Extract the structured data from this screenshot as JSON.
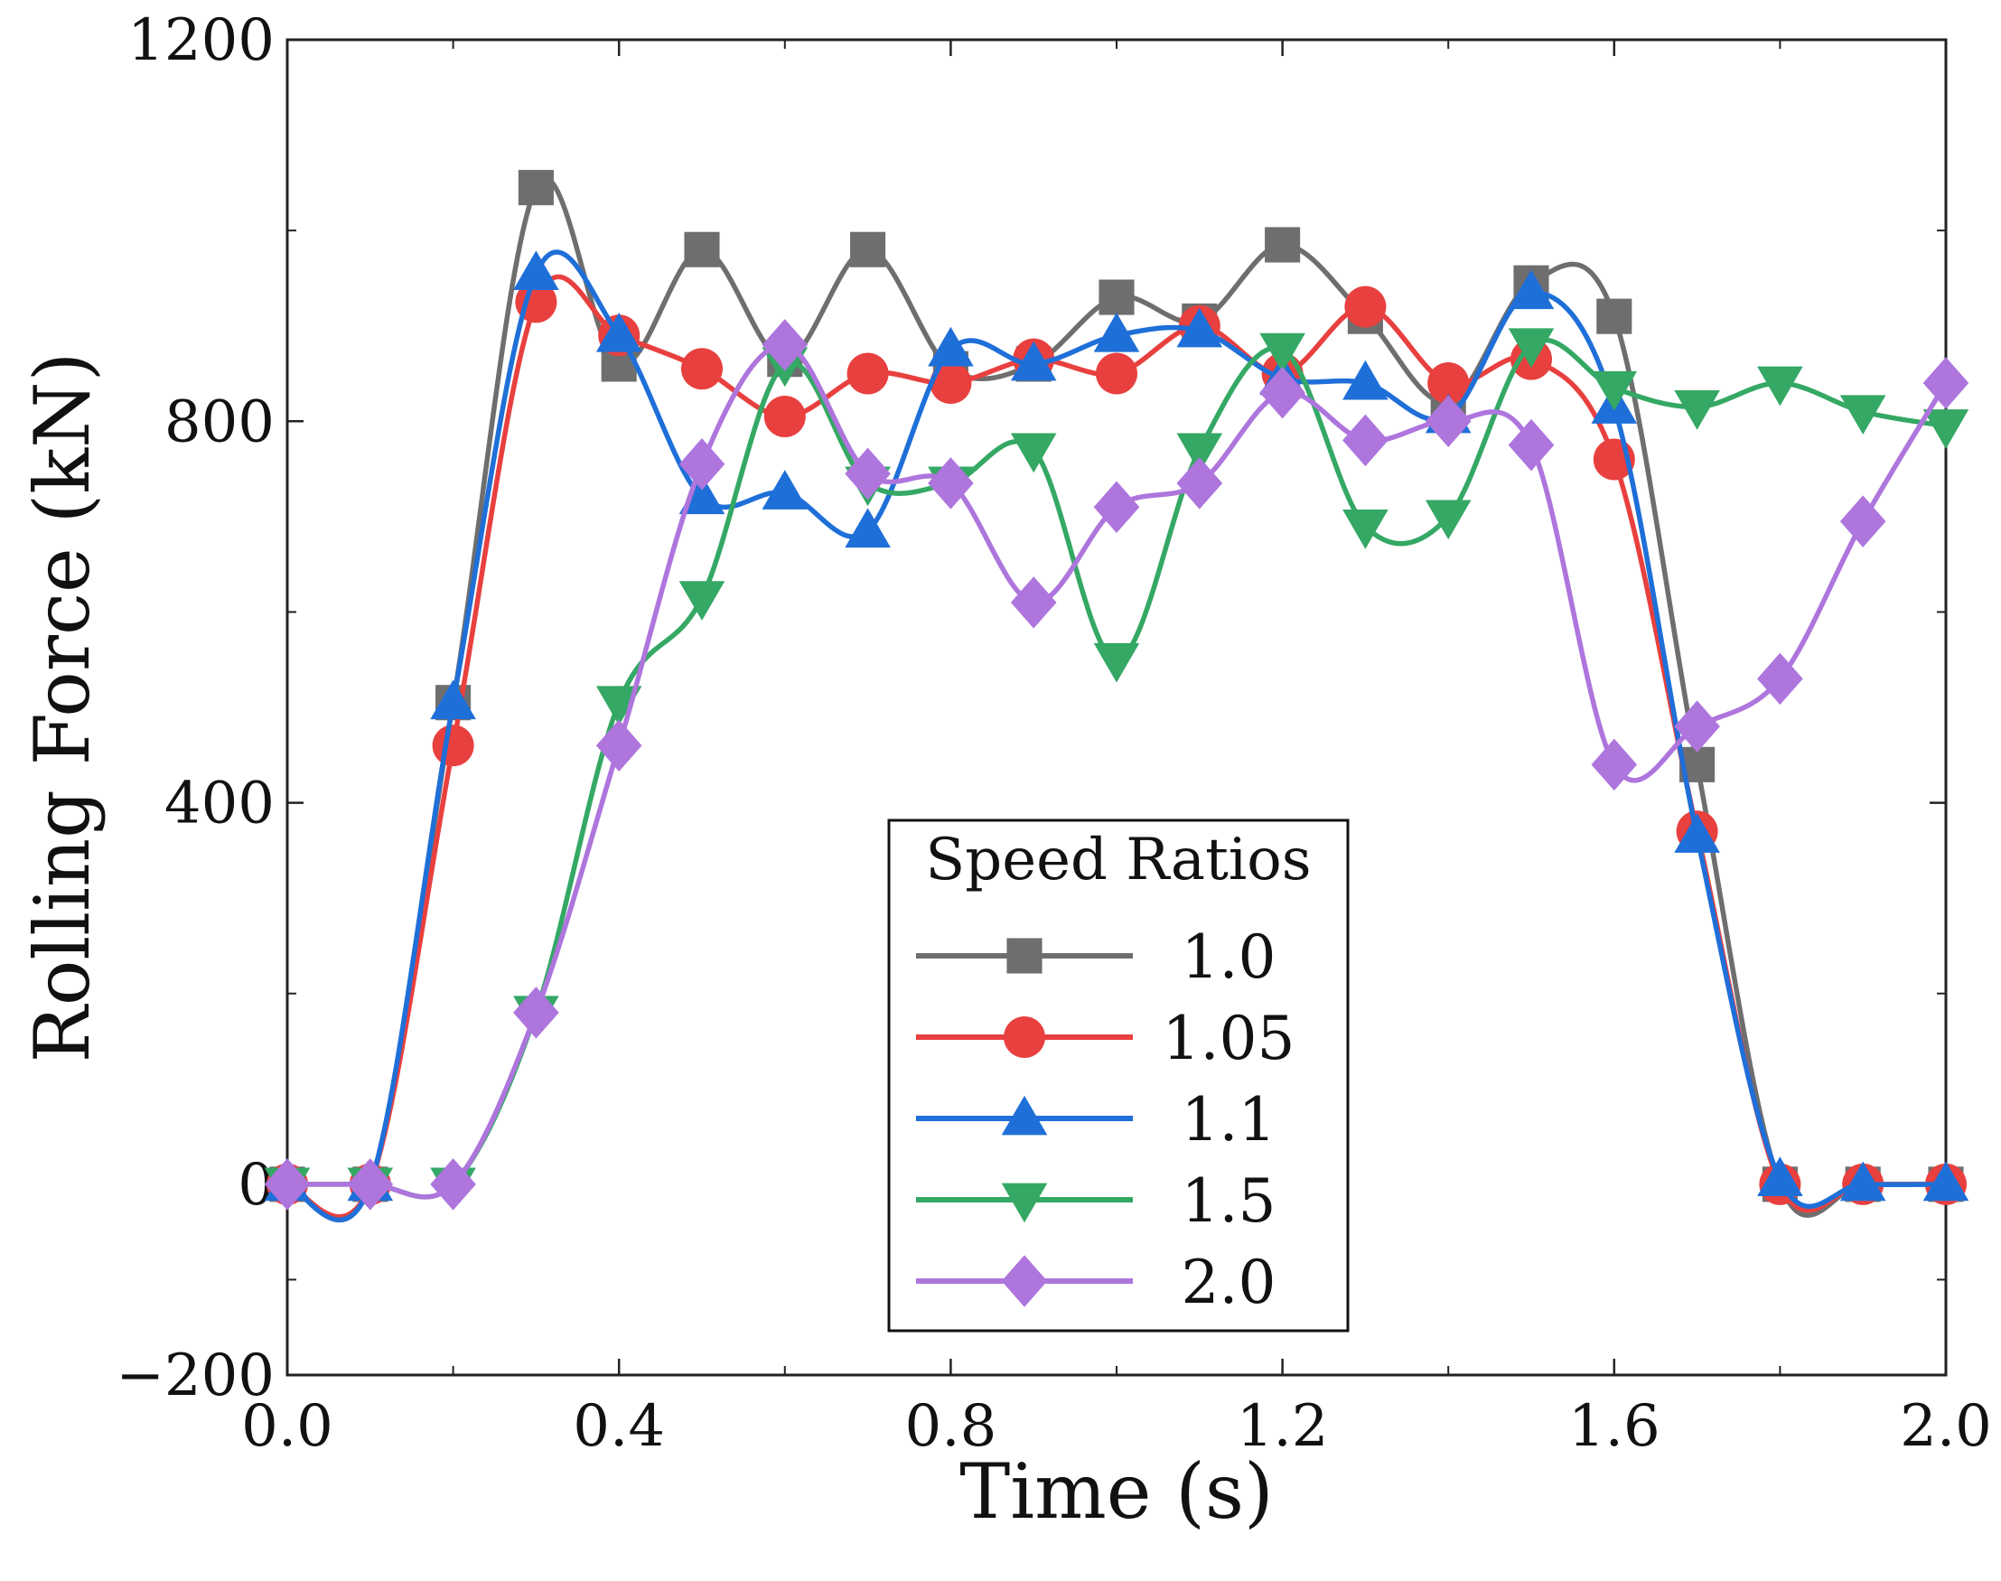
{
  "chart_data": {
    "type": "line",
    "title": "",
    "xlabel": "Time (s)",
    "ylabel": "Rolling Force (kN)",
    "xlim": [
      0.0,
      2.0
    ],
    "ylim": [
      -200,
      1200
    ],
    "xticks": [
      0.0,
      0.4,
      0.8,
      1.2,
      1.6,
      2.0
    ],
    "xtick_labels": [
      "0.0",
      "0.4",
      "0.8",
      "1.2",
      "1.6",
      "2.0"
    ],
    "yticks": [
      -200,
      0,
      400,
      800,
      1200
    ],
    "ytick_labels": [
      "−200",
      "0",
      "400",
      "800",
      "1200"
    ],
    "grid": false,
    "legend": {
      "title": "Speed Ratios",
      "position": "lower-center"
    },
    "x": [
      0.0,
      0.1,
      0.2,
      0.3,
      0.4,
      0.5,
      0.6,
      0.7,
      0.8,
      0.9,
      1.0,
      1.1,
      1.2,
      1.3,
      1.4,
      1.5,
      1.6,
      1.7,
      1.8,
      1.9,
      2.0
    ],
    "series": [
      {
        "name": "1.0",
        "color": "#6e6e6e",
        "marker": "square",
        "values": [
          0,
          0,
          505,
          1045,
          860,
          980,
          865,
          980,
          855,
          860,
          930,
          905,
          985,
          910,
          820,
          945,
          910,
          440,
          0,
          0,
          0
        ]
      },
      {
        "name": "1.05",
        "color": "#e8403f",
        "marker": "circle",
        "values": [
          0,
          0,
          460,
          925,
          890,
          855,
          805,
          850,
          840,
          865,
          850,
          900,
          850,
          920,
          840,
          865,
          760,
          370,
          0,
          0,
          0
        ]
      },
      {
        "name": "1.1",
        "color": "#1f6fd8",
        "marker": "triangle-up",
        "values": [
          0,
          0,
          505,
          955,
          890,
          720,
          725,
          685,
          875,
          860,
          890,
          895,
          845,
          840,
          805,
          935,
          815,
          365,
          5,
          0,
          0
        ]
      },
      {
        "name": "1.5",
        "color": "#34a864",
        "marker": "triangle-down",
        "values": [
          0,
          0,
          0,
          180,
          505,
          615,
          860,
          735,
          735,
          770,
          550,
          770,
          875,
          690,
          700,
          880,
          835,
          815,
          840,
          810,
          795
        ]
      },
      {
        "name": "2.0",
        "color": "#ae75dd",
        "marker": "diamond",
        "values": [
          0,
          0,
          0,
          180,
          460,
          755,
          880,
          745,
          735,
          610,
          710,
          735,
          830,
          780,
          800,
          775,
          440,
          480,
          530,
          695,
          840
        ]
      }
    ]
  }
}
